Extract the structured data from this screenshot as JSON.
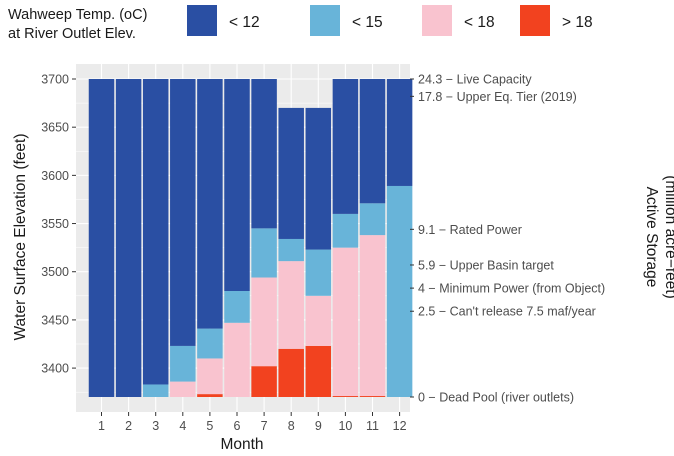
{
  "chart_data": {
    "type": "bar",
    "stacked": true,
    "xlabel": "Month",
    "ylabel": "Water Surface Elevation (feet)",
    "ylabel_secondary": "Active Storage (million acre−feet)",
    "ylim": [
      3360,
      3710
    ],
    "y_ticks": [
      3400,
      3450,
      3500,
      3550,
      3600,
      3650,
      3700
    ],
    "grid": true,
    "base_elevation": 3370,
    "categories": [
      "1",
      "2",
      "3",
      "4",
      "5",
      "6",
      "7",
      "8",
      "9",
      "10",
      "11",
      "12"
    ],
    "legend": {
      "title_lines": [
        "Wahweep Temp. (oC)",
        "at River Outlet Elev."
      ],
      "position": "top",
      "entries": [
        {
          "label": "< 12",
          "color": "#2a4fa3"
        },
        {
          "label": "< 15",
          "color": "#68b4d9"
        },
        {
          "label": "< 18",
          "color": "#f9c3cf"
        },
        {
          "label": "> 18",
          "color": "#f2421f"
        }
      ]
    },
    "series": [
      {
        "name": "> 18",
        "color": "#f2421f",
        "values": [
          0,
          0,
          0,
          0,
          3,
          0,
          32,
          50,
          53,
          1,
          1,
          0
        ]
      },
      {
        "name": "< 18",
        "color": "#f9c3cf",
        "values": [
          0,
          0,
          0,
          16,
          37,
          77,
          92,
          91,
          52,
          154,
          167,
          0
        ]
      },
      {
        "name": "< 15",
        "color": "#68b4d9",
        "values": [
          0,
          0,
          13,
          37,
          31,
          33,
          51,
          23,
          48,
          35,
          33,
          219
        ]
      },
      {
        "name": "< 12",
        "color": "#2a4fa3",
        "values": [
          330,
          330,
          317,
          277,
          259,
          220,
          155,
          136,
          147,
          140,
          129,
          111
        ]
      }
    ],
    "secondary_axis": [
      {
        "elevation": 3700,
        "label": "24.3 − Live Capacity"
      },
      {
        "elevation": 3682,
        "label": "17.8 − Upper Eq. Tier (2019)"
      },
      {
        "elevation": 3544,
        "label": "9.1 − Rated Power"
      },
      {
        "elevation": 3507,
        "label": "5.9 − Upper Basin target"
      },
      {
        "elevation": 3483,
        "label": "4 − Minimum Power (from Object)"
      },
      {
        "elevation": 3459,
        "label": "2.5 − Can't release 7.5 maf/year"
      },
      {
        "elevation": 3370,
        "label": "0 − Dead Pool (river outlets)"
      }
    ],
    "colors": {
      "panel_background": "#ebebeb",
      "gridline": "#ffffff"
    }
  }
}
